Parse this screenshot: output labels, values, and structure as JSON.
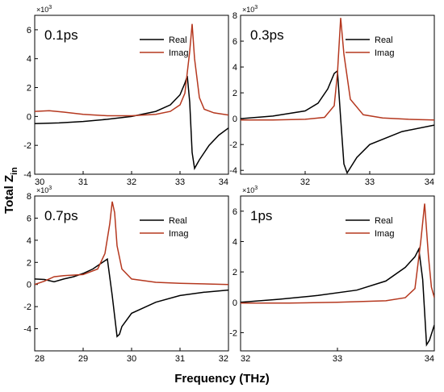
{
  "figure": {
    "xlabel": "Frequency (THz)",
    "ylabel": "Total Z",
    "ylabel_subscript": "in"
  },
  "chart_data": [
    {
      "type": "line",
      "panel_label": "0.1ps",
      "y_multiplier": "×10",
      "y_multiplier_exp": "3",
      "xlim": [
        30,
        34
      ],
      "ylim": [
        -4,
        7
      ],
      "xticks": [
        30,
        31,
        32,
        33,
        34
      ],
      "yticks": [
        -4,
        -2,
        0,
        2,
        4,
        6
      ],
      "grid": false,
      "legend_position": "top-right",
      "series": [
        {
          "name": "Real",
          "color": "#000000",
          "x": [
            30.0,
            30.5,
            31.0,
            31.5,
            32.0,
            32.5,
            32.8,
            33.0,
            33.1,
            33.15,
            33.2,
            33.25,
            33.3,
            33.4,
            33.6,
            33.8,
            34.0
          ],
          "y": [
            -0.5,
            -0.45,
            -0.35,
            -0.2,
            0.0,
            0.35,
            0.8,
            1.5,
            2.3,
            2.8,
            1.0,
            -2.5,
            -3.6,
            -3.0,
            -2.0,
            -1.3,
            -0.8
          ]
        },
        {
          "name": "Imag",
          "color": "#b5381f",
          "x": [
            30.0,
            30.3,
            30.6,
            31.0,
            31.5,
            32.0,
            32.5,
            32.8,
            33.0,
            33.1,
            33.2,
            33.25,
            33.3,
            33.4,
            33.5,
            33.7,
            34.0
          ],
          "y": [
            0.35,
            0.4,
            0.3,
            0.15,
            0.05,
            0.05,
            0.15,
            0.35,
            0.8,
            1.6,
            4.5,
            6.4,
            4.0,
            1.3,
            0.5,
            0.25,
            0.1
          ]
        }
      ]
    },
    {
      "type": "line",
      "panel_label": "0.3ps",
      "y_multiplier": "×10",
      "y_multiplier_exp": "3",
      "xlim": [
        31,
        34
      ],
      "ylim": [
        -4.3,
        8
      ],
      "xticks": [
        32,
        33,
        34
      ],
      "yticks": [
        -4,
        -2,
        0,
        2,
        4,
        6,
        8
      ],
      "grid": false,
      "legend_position": "top-right",
      "series": [
        {
          "name": "Real",
          "color": "#000000",
          "x": [
            31.0,
            31.5,
            32.0,
            32.2,
            32.35,
            32.45,
            32.5,
            32.55,
            32.6,
            32.65,
            32.7,
            32.8,
            33.0,
            33.5,
            34.0
          ],
          "y": [
            0.0,
            0.2,
            0.6,
            1.2,
            2.3,
            3.5,
            3.7,
            0.0,
            -3.5,
            -4.2,
            -3.8,
            -3.0,
            -2.0,
            -1.0,
            -0.5
          ]
        },
        {
          "name": "Imag",
          "color": "#b5381f",
          "x": [
            31.0,
            31.5,
            32.0,
            32.3,
            32.45,
            32.5,
            32.55,
            32.6,
            32.7,
            32.9,
            33.2,
            33.6,
            34.0
          ],
          "y": [
            -0.1,
            -0.1,
            -0.05,
            0.1,
            1.0,
            3.5,
            7.8,
            5.0,
            1.5,
            0.3,
            0.05,
            -0.05,
            -0.1
          ]
        }
      ]
    },
    {
      "type": "line",
      "panel_label": "0.7ps",
      "y_multiplier": "×10",
      "y_multiplier_exp": "3",
      "xlim": [
        28,
        32
      ],
      "ylim": [
        -6,
        8
      ],
      "xticks": [
        28,
        29,
        30,
        31,
        32
      ],
      "yticks": [
        -4,
        -2,
        0,
        2,
        4,
        6,
        8
      ],
      "grid": false,
      "legend_position": "top-right",
      "series": [
        {
          "name": "Real",
          "color": "#000000",
          "x": [
            28.0,
            28.2,
            28.4,
            28.6,
            28.8,
            29.0,
            29.2,
            29.4,
            29.5,
            29.6,
            29.7,
            29.75,
            29.8,
            30.0,
            30.5,
            31.0,
            31.5,
            32.0
          ],
          "y": [
            0.5,
            0.45,
            0.25,
            0.5,
            0.7,
            1.0,
            1.4,
            2.0,
            2.3,
            -1.0,
            -4.7,
            -4.5,
            -3.8,
            -2.6,
            -1.6,
            -1.0,
            -0.7,
            -0.5
          ]
        },
        {
          "name": "Imag",
          "color": "#b5381f",
          "x": [
            28.0,
            28.2,
            28.4,
            28.6,
            29.0,
            29.3,
            29.45,
            29.55,
            29.6,
            29.65,
            29.7,
            29.8,
            30.0,
            30.5,
            31.0,
            32.0
          ],
          "y": [
            0.0,
            0.3,
            0.7,
            0.8,
            0.9,
            1.4,
            2.8,
            5.5,
            7.5,
            6.5,
            3.5,
            1.4,
            0.5,
            0.2,
            0.1,
            0.0
          ]
        }
      ]
    },
    {
      "type": "line",
      "panel_label": "1ps",
      "y_multiplier": "×10",
      "y_multiplier_exp": "3",
      "xlim": [
        32,
        34
      ],
      "ylim": [
        -3.2,
        7
      ],
      "xticks": [
        32,
        33,
        34
      ],
      "yticks": [
        -2,
        0,
        2,
        4,
        6
      ],
      "grid": false,
      "legend_position": "top-right",
      "series": [
        {
          "name": "Real",
          "color": "#000000",
          "x": [
            32.0,
            32.4,
            32.8,
            33.2,
            33.5,
            33.7,
            33.8,
            33.84,
            33.88,
            33.92,
            33.95,
            34.0
          ],
          "y": [
            0.0,
            0.2,
            0.45,
            0.8,
            1.4,
            2.3,
            3.0,
            3.5,
            1.5,
            -2.8,
            -2.5,
            -1.5
          ]
        },
        {
          "name": "Imag",
          "color": "#b5381f",
          "x": [
            32.0,
            32.5,
            33.0,
            33.5,
            33.7,
            33.8,
            33.86,
            33.9,
            33.94,
            33.97,
            34.0
          ],
          "y": [
            -0.05,
            -0.05,
            0.0,
            0.1,
            0.3,
            0.9,
            4.0,
            6.5,
            3.0,
            1.0,
            0.3
          ]
        }
      ]
    }
  ]
}
